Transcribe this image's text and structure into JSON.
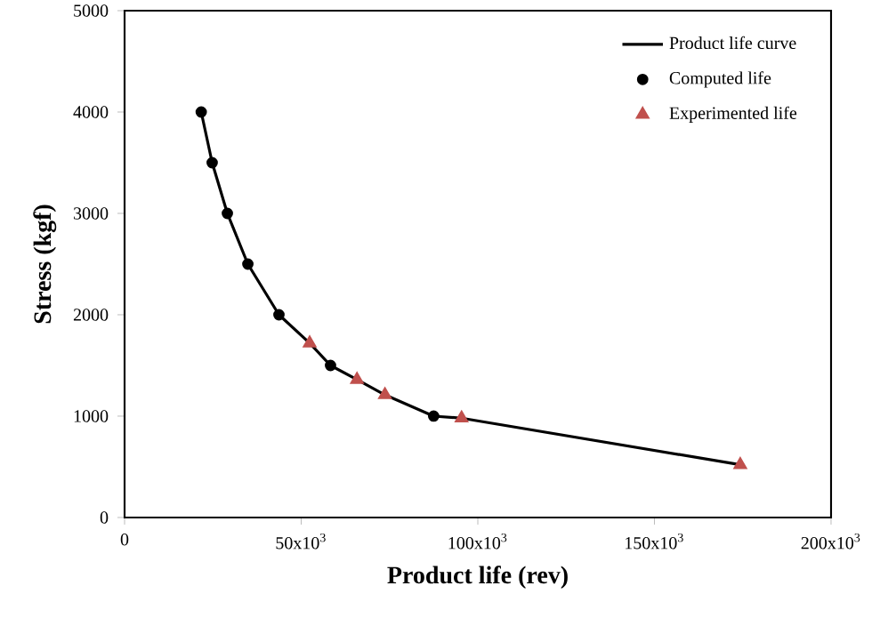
{
  "chart_data": {
    "type": "line",
    "xlabel": "Product life (rev)",
    "ylabel": "Stress (kgf)",
    "xlim": [
      0,
      200000
    ],
    "ylim": [
      0,
      5000
    ],
    "xticks": [
      0,
      {
        "value": 50000,
        "label": "50x10$^{3}$"
      },
      {
        "value": 100000,
        "label": "100x10$^{3}$"
      },
      {
        "value": 150000,
        "label": "150x10$^{3}$"
      },
      {
        "value": 200000,
        "label": "200x10$^{3}$"
      }
    ],
    "yticks": [
      0,
      1000,
      2000,
      3000,
      4000,
      5000
    ],
    "grid": false,
    "legend": "top right",
    "series": [
      {
        "name": "Product life curve",
        "color": "#000000",
        "marker": "none",
        "x": [
          21700,
          24800,
          29100,
          34900,
          43700,
          52400,
          58300,
          65800,
          73700,
          87500,
          95400,
          174300
        ],
        "values": [
          4000,
          3500,
          3000,
          2500,
          2000,
          1720,
          1500,
          1360,
          1210,
          1000,
          980,
          520
        ]
      },
      {
        "name": "Computed life",
        "type": "scatter",
        "color": "#000000",
        "marker": "circle",
        "x": [
          21700,
          24800,
          29100,
          34900,
          43700,
          58300,
          87500
        ],
        "values": [
          4000,
          3500,
          3000,
          2500,
          2000,
          1500,
          1000
        ]
      },
      {
        "name": "Experimented life",
        "type": "scatter",
        "color": "#c0504d",
        "marker": "triangle",
        "x": [
          52400,
          65800,
          73700,
          95400,
          174300
        ],
        "values": [
          1720,
          1360,
          1210,
          980,
          520
        ]
      }
    ]
  }
}
